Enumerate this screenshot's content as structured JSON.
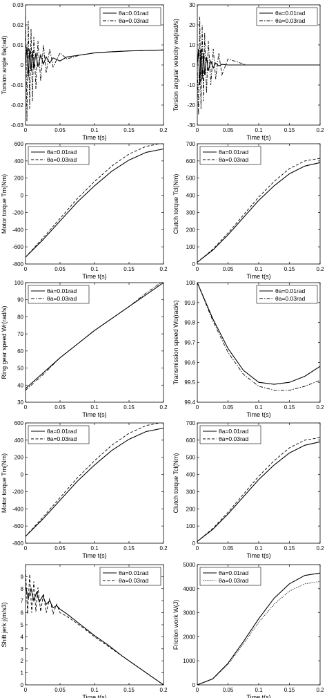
{
  "chart_data": [
    {
      "type": "line",
      "xlabel": "Time t(s)",
      "ylabel": "Torsion angle θa(rad)",
      "xlim": [
        0,
        0.2
      ],
      "ylim": [
        -0.03,
        0.03
      ],
      "xticks": [
        "0",
        "0.05",
        "0.1",
        "0.15",
        "0.2"
      ],
      "yticks": [
        "-0.03",
        "-0.02",
        "-0.01",
        "0",
        "0.01",
        "0.02",
        "0.03"
      ],
      "legend_position": "top-right",
      "series": [
        {
          "name": "θa=0.01rad",
          "style": "solid",
          "x": [
            0,
            0.002,
            0.004,
            0.006,
            0.008,
            0.01,
            0.012,
            0.015,
            0.018,
            0.022,
            0.026,
            0.03,
            0.035,
            0.04,
            0.05,
            0.06,
            0.08,
            0.1,
            0.12,
            0.15,
            0.2
          ],
          "y": [
            0,
            0.009,
            -0.006,
            0.008,
            -0.003,
            0.007,
            -0.002,
            0.006,
            -0.001,
            0.005,
            0.0005,
            0.004,
            0.001,
            0.0035,
            0.002,
            0.004,
            0.005,
            0.006,
            0.0065,
            0.007,
            0.0075
          ]
        },
        {
          "name": "θa=0.03rad",
          "style": "dash-dot",
          "x": [
            0,
            0.002,
            0.004,
            0.006,
            0.008,
            0.01,
            0.012,
            0.015,
            0.018,
            0.022,
            0.026,
            0.03,
            0.035,
            0.04,
            0.05,
            0.06,
            0.08,
            0.1,
            0.12,
            0.15,
            0.2
          ],
          "y": [
            0.028,
            -0.028,
            0.022,
            -0.022,
            0.018,
            -0.018,
            0.014,
            -0.012,
            0.012,
            -0.008,
            0.01,
            -0.004,
            0.008,
            -0.001,
            0.006,
            0.003,
            0.005,
            0.006,
            0.0065,
            0.007,
            0.0075
          ]
        }
      ]
    },
    {
      "type": "line",
      "xlabel": "Time t(s)",
      "ylabel": "Torsion angular velocity wa(rad/s)",
      "xlim": [
        0,
        0.2
      ],
      "ylim": [
        -30,
        30
      ],
      "xticks": [
        "0",
        "0.05",
        "0.1",
        "0.15",
        "0.2"
      ],
      "yticks": [
        "-30",
        "-20",
        "-10",
        "0",
        "10",
        "20",
        "30"
      ],
      "legend_position": "top-right",
      "series": [
        {
          "name": "θa=0.01rad",
          "style": "solid",
          "x": [
            0,
            0.002,
            0.004,
            0.006,
            0.008,
            0.01,
            0.012,
            0.015,
            0.018,
            0.022,
            0.026,
            0.03,
            0.035,
            0.04,
            0.05,
            0.06,
            0.08,
            0.2
          ],
          "y": [
            0,
            8,
            -10,
            8,
            -7,
            6,
            -5,
            4,
            -3,
            2,
            -1.5,
            1,
            -0.5,
            0.3,
            0,
            0,
            0,
            0
          ]
        },
        {
          "name": "θa=0.03rad",
          "style": "dash-dot",
          "x": [
            0,
            0.002,
            0.004,
            0.006,
            0.008,
            0.01,
            0.012,
            0.015,
            0.018,
            0.022,
            0.026,
            0.03,
            0.035,
            0.04,
            0.05,
            0.06,
            0.07,
            0.08,
            0.2
          ],
          "y": [
            0,
            -25,
            24,
            -22,
            20,
            -18,
            16,
            -14,
            12,
            -10,
            8,
            -7,
            6,
            -5,
            3,
            2,
            1,
            0,
            0
          ]
        }
      ]
    },
    {
      "type": "line",
      "xlabel": "Time t(s)",
      "ylabel": "Motor torque Tm(Nm)",
      "xlim": [
        0,
        0.2
      ],
      "ylim": [
        -800,
        600
      ],
      "xticks": [
        "0",
        "0.05",
        "0.1",
        "0.15",
        "0.2"
      ],
      "yticks": [
        "-800",
        "-600",
        "-400",
        "-200",
        "0",
        "200",
        "400",
        "600"
      ],
      "legend_position": "top-left",
      "series": [
        {
          "name": "θa=0.01rad",
          "style": "solid",
          "x": [
            0,
            0.025,
            0.05,
            0.075,
            0.1,
            0.125,
            0.15,
            0.175,
            0.2
          ],
          "y": [
            -720,
            -520,
            -300,
            -80,
            110,
            280,
            410,
            500,
            540
          ]
        },
        {
          "name": "θa=0.03rad",
          "style": "dashed",
          "x": [
            0,
            0.025,
            0.05,
            0.075,
            0.1,
            0.125,
            0.15,
            0.175,
            0.2
          ],
          "y": [
            -720,
            -500,
            -270,
            -40,
            160,
            340,
            480,
            570,
            610
          ]
        }
      ]
    },
    {
      "type": "line",
      "xlabel": "Time t(s)",
      "ylabel": "Clutch torque Tcl(Nm)",
      "xlim": [
        0,
        0.2
      ],
      "ylim": [
        0,
        700
      ],
      "xticks": [
        "0",
        "0.05",
        "0.1",
        "0.15",
        "0.2"
      ],
      "yticks": [
        "0",
        "100",
        "200",
        "300",
        "400",
        "500",
        "600",
        "700"
      ],
      "legend_position": "top-left",
      "series": [
        {
          "name": "θa=0.01rad",
          "style": "solid",
          "x": [
            0,
            0.025,
            0.05,
            0.075,
            0.1,
            0.125,
            0.15,
            0.175,
            0.2
          ],
          "y": [
            10,
            80,
            170,
            270,
            370,
            455,
            525,
            570,
            590
          ]
        },
        {
          "name": "θa=0.03rad",
          "style": "dashed",
          "x": [
            0,
            0.025,
            0.05,
            0.075,
            0.1,
            0.125,
            0.15,
            0.175,
            0.2
          ],
          "y": [
            10,
            85,
            180,
            285,
            390,
            480,
            555,
            600,
            615
          ]
        }
      ]
    },
    {
      "type": "line",
      "xlabel": "Time t(s)",
      "ylabel": "Ring gear speed Wr(rad/s)",
      "xlim": [
        0,
        0.2
      ],
      "ylim": [
        30,
        100
      ],
      "xticks": [
        "0",
        "0.05",
        "0.1",
        "0.15",
        "0.2"
      ],
      "yticks": [
        "30",
        "40",
        "50",
        "60",
        "70",
        "80",
        "90",
        "100"
      ],
      "legend_position": "top-left",
      "series": [
        {
          "name": "θa=0.01rad",
          "style": "solid",
          "x": [
            0,
            0.025,
            0.05,
            0.075,
            0.1,
            0.125,
            0.15,
            0.175,
            0.2
          ],
          "y": [
            38,
            47,
            56,
            64,
            72,
            79,
            86,
            93,
            100
          ]
        },
        {
          "name": "θa=0.03rad",
          "style": "dash-dot",
          "x": [
            0,
            0.025,
            0.05,
            0.075,
            0.1,
            0.125,
            0.15,
            0.175,
            0.2
          ],
          "y": [
            37,
            46,
            56,
            64,
            72,
            79,
            86,
            94,
            101
          ]
        }
      ]
    },
    {
      "type": "line",
      "xlabel": "Time t(s)",
      "ylabel": "Transmission speed Wo(rad/s)",
      "xlim": [
        0,
        0.2
      ],
      "ylim": [
        99.4,
        100
      ],
      "xticks": [
        "0",
        "0.05",
        "0.1",
        "0.15",
        "0.2"
      ],
      "yticks": [
        "99.4",
        "99.5",
        "99.6",
        "99.7",
        "99.8",
        "99.9",
        "100"
      ],
      "legend_position": "top-right",
      "series": [
        {
          "name": "θa=0.01rad",
          "style": "solid",
          "x": [
            0,
            0.025,
            0.05,
            0.075,
            0.1,
            0.125,
            0.15,
            0.175,
            0.2
          ],
          "y": [
            100,
            99.82,
            99.67,
            99.56,
            99.5,
            99.49,
            99.5,
            99.53,
            99.58
          ]
        },
        {
          "name": "θa=0.03rad",
          "style": "dash-dot",
          "x": [
            0,
            0.025,
            0.05,
            0.075,
            0.1,
            0.125,
            0.15,
            0.175,
            0.2
          ],
          "y": [
            100,
            99.81,
            99.65,
            99.54,
            99.48,
            99.46,
            99.46,
            99.48,
            99.51
          ]
        }
      ]
    },
    {
      "type": "line",
      "xlabel": "Time t(s)",
      "ylabel": "Motor torque Tm(Nm)",
      "xlim": [
        0,
        0.2
      ],
      "ylim": [
        -800,
        600
      ],
      "xticks": [
        "0",
        "0.05",
        "0.1",
        "0.15",
        "0.2"
      ],
      "yticks": [
        "-800",
        "-600",
        "-400",
        "-200",
        "0",
        "200",
        "400",
        "600"
      ],
      "legend_position": "top-left",
      "series": [
        {
          "name": "θa=0.01rad",
          "style": "solid",
          "x": [
            0,
            0.025,
            0.05,
            0.075,
            0.1,
            0.125,
            0.15,
            0.175,
            0.2
          ],
          "y": [
            -720,
            -520,
            -300,
            -80,
            110,
            280,
            410,
            500,
            540
          ]
        },
        {
          "name": "θa=0.03rad",
          "style": "dashed",
          "x": [
            0,
            0.025,
            0.05,
            0.075,
            0.1,
            0.125,
            0.15,
            0.175,
            0.2
          ],
          "y": [
            -720,
            -500,
            -270,
            -40,
            160,
            340,
            480,
            570,
            610
          ]
        }
      ]
    },
    {
      "type": "line",
      "xlabel": "Time t(s)",
      "ylabel": "Clutch torque Tcl(Nm)",
      "xlim": [
        0,
        0.2
      ],
      "ylim": [
        0,
        700
      ],
      "xticks": [
        "0",
        "0.05",
        "0.1",
        "0.15",
        "0.2"
      ],
      "yticks": [
        "0",
        "100",
        "200",
        "300",
        "400",
        "500",
        "600",
        "700"
      ],
      "legend_position": "top-left",
      "series": [
        {
          "name": "θa=0.01rad",
          "style": "solid",
          "x": [
            0,
            0.025,
            0.05,
            0.075,
            0.1,
            0.125,
            0.15,
            0.175,
            0.2
          ],
          "y": [
            10,
            80,
            170,
            270,
            370,
            455,
            525,
            570,
            590
          ]
        },
        {
          "name": "θa=0.03rad",
          "style": "dashed",
          "x": [
            0,
            0.025,
            0.05,
            0.075,
            0.1,
            0.125,
            0.15,
            0.175,
            0.2
          ],
          "y": [
            10,
            85,
            180,
            285,
            390,
            480,
            555,
            600,
            615
          ]
        }
      ]
    },
    {
      "type": "line",
      "xlabel": "Time t(s)",
      "ylabel": "Shift jerk j(m/s3)",
      "xlim": [
        0,
        0.2
      ],
      "ylim": [
        0,
        10
      ],
      "xticks": [
        "0",
        "0.05",
        "0.1",
        "0.15",
        "0.2"
      ],
      "yticks": [
        "0",
        "1",
        "2",
        "3",
        "4",
        "5",
        "6",
        "7",
        "8",
        "9"
      ],
      "legend_position": "top-right",
      "series": [
        {
          "name": "θa=0.01rad",
          "style": "solid",
          "x": [
            0,
            0.004,
            0.008,
            0.012,
            0.016,
            0.02,
            0.025,
            0.03,
            0.035,
            0.04,
            0.045,
            0.05,
            0.06,
            0.08,
            0.1,
            0.12,
            0.14,
            0.16,
            0.18,
            0.2
          ],
          "y": [
            8.2,
            7.2,
            8.0,
            7.0,
            7.7,
            6.9,
            7.4,
            6.7,
            7.0,
            6.4,
            6.6,
            6.3,
            5.9,
            5.0,
            4.1,
            3.3,
            2.4,
            1.6,
            0.8,
            0
          ]
        },
        {
          "name": "θa=0.03rad",
          "style": "dashed",
          "x": [
            0,
            0.003,
            0.006,
            0.009,
            0.012,
            0.015,
            0.018,
            0.022,
            0.026,
            0.03,
            0.035,
            0.04,
            0.045,
            0.05,
            0.06,
            0.08,
            0.1,
            0.12,
            0.14,
            0.16,
            0.18,
            0.2
          ],
          "y": [
            9.6,
            5.9,
            9.2,
            6.0,
            8.6,
            6.1,
            8.1,
            6.1,
            7.6,
            6.0,
            7.2,
            5.9,
            6.7,
            6.0,
            5.7,
            4.9,
            4.0,
            3.2,
            2.4,
            1.6,
            0.8,
            0
          ]
        }
      ]
    },
    {
      "type": "line",
      "xlabel": "Time t(s)",
      "ylabel": "Friction work W(J)",
      "xlim": [
        0,
        0.2
      ],
      "ylim": [
        0,
        5000
      ],
      "xticks": [
        "0",
        "0.05",
        "0.1",
        "0.15",
        "0.2"
      ],
      "yticks": [
        "0",
        "1000",
        "2000",
        "3000",
        "4000",
        "5000"
      ],
      "legend_position": "top-left",
      "series": [
        {
          "name": "θa=0.01rad",
          "style": "solid",
          "x": [
            0,
            0.025,
            0.05,
            0.075,
            0.1,
            0.125,
            0.15,
            0.175,
            0.2
          ],
          "y": [
            0,
            250,
            900,
            1800,
            2750,
            3600,
            4200,
            4550,
            4650
          ]
        },
        {
          "name": "θa=0.03rad",
          "style": "dotted",
          "x": [
            0,
            0.025,
            0.05,
            0.075,
            0.1,
            0.125,
            0.15,
            0.175,
            0.2
          ],
          "y": [
            0,
            240,
            850,
            1700,
            2600,
            3350,
            3900,
            4200,
            4300
          ]
        }
      ]
    }
  ]
}
